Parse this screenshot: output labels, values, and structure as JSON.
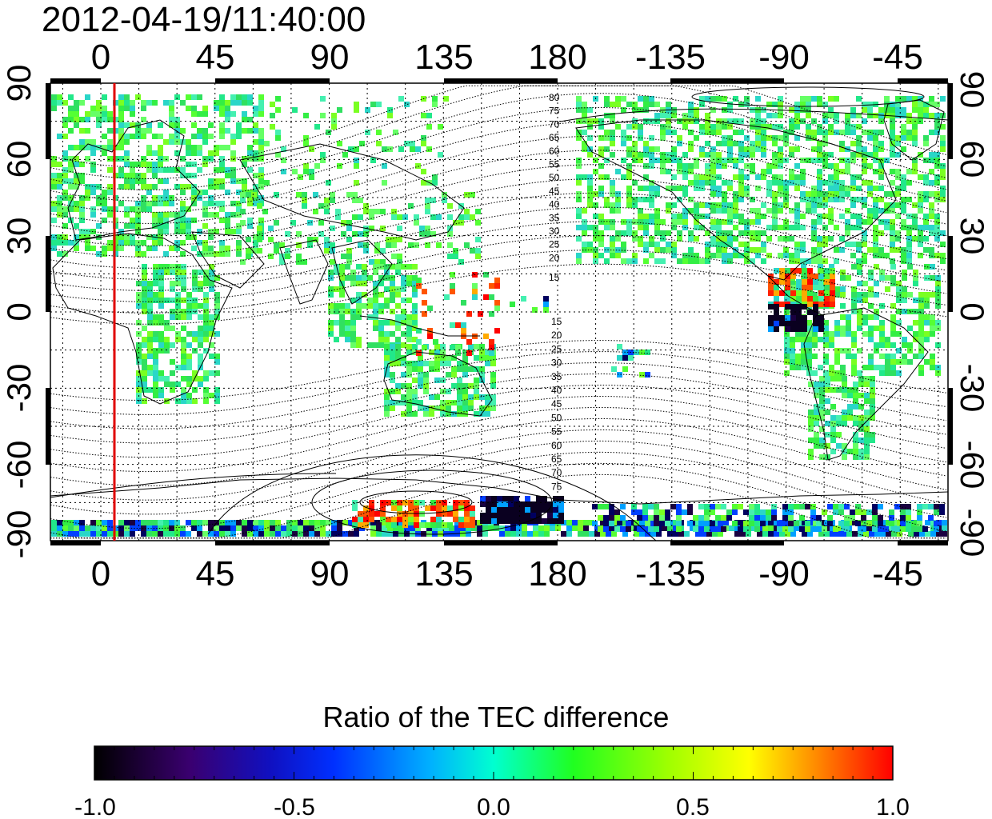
{
  "title": "2012-04-19/11:40:00",
  "map": {
    "lon_ticks": [
      "0",
      "45",
      "90",
      "135",
      "180",
      "-135",
      "-90",
      "-45"
    ],
    "lat_ticks_left": [
      "90",
      "60",
      "30",
      "0",
      "-30",
      "-60",
      "-90"
    ],
    "lat_ticks_right": [
      "90",
      "60",
      "30",
      "0",
      "-30",
      "-60",
      "-90"
    ],
    "marker_line_color": "#e00000",
    "contour_labels_north": [
      "80",
      "75",
      "70",
      "65",
      "60",
      "55",
      "50",
      "45",
      "40",
      "35",
      "30",
      "25",
      "20",
      "15"
    ],
    "contour_labels_south": [
      "15",
      "20",
      "25",
      "30",
      "35",
      "40",
      "45",
      "50",
      "55",
      "60",
      "65",
      "70",
      "75"
    ]
  },
  "colorbar": {
    "title": "Ratio of the TEC difference",
    "tick_labels": [
      "-1.0",
      "-0.5",
      "0.0",
      "0.5",
      "1.0"
    ],
    "range": [
      -1.0,
      1.0
    ],
    "colors": [
      "#000000",
      "#2a0060",
      "#0000ff",
      "#00a0ff",
      "#00ffff",
      "#00ff80",
      "#20ff00",
      "#a0ff00",
      "#ffff00",
      "#ffa000",
      "#ff4000",
      "#ff0000"
    ]
  }
}
